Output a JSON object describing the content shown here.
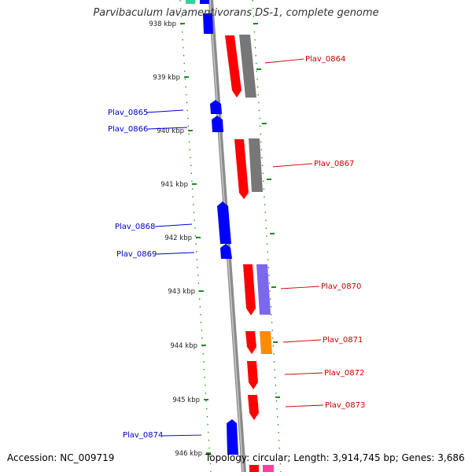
{
  "header": {
    "title": "Parvibaculum lavamentivorans DS-1, complete genome"
  },
  "footer": {
    "accession": "Accession: NC_009719",
    "topology": "Topology: circular; Length: 3,914,745 bp; Genes: 3,686"
  },
  "colors": {
    "backbone": "#8c8c8c",
    "ruler": "#228b22",
    "forward_gene": "#0000ff",
    "reverse_gene": "#ff0000",
    "gray_feature": "#777777",
    "purple_feature": "#7b68ee",
    "orange_feature": "#ff8c00",
    "teal_feature": "#2bd69b",
    "pink_feature": "#ff3fa0",
    "label_forward": "#0000cc",
    "label_reverse": "#cc0000"
  },
  "ruler_ticks": [
    "938 kbp",
    "939 kbp",
    "940 kbp",
    "941 kbp",
    "942 kbp",
    "943 kbp",
    "944 kbp",
    "945 kbp",
    "946 kbp"
  ],
  "gene_labels": [
    {
      "name": "Plav_0864",
      "strand": "reverse"
    },
    {
      "name": "Plav_0865",
      "strand": "forward"
    },
    {
      "name": "Plav_0866",
      "strand": "forward"
    },
    {
      "name": "Plav_0867",
      "strand": "reverse"
    },
    {
      "name": "Plav_0868",
      "strand": "forward"
    },
    {
      "name": "Plav_0869",
      "strand": "forward"
    },
    {
      "name": "Plav_0870",
      "strand": "reverse"
    },
    {
      "name": "Plav_0871",
      "strand": "reverse"
    },
    {
      "name": "Plav_0872",
      "strand": "reverse"
    },
    {
      "name": "Plav_0873",
      "strand": "reverse"
    },
    {
      "name": "Plav_0874",
      "strand": "forward"
    }
  ]
}
